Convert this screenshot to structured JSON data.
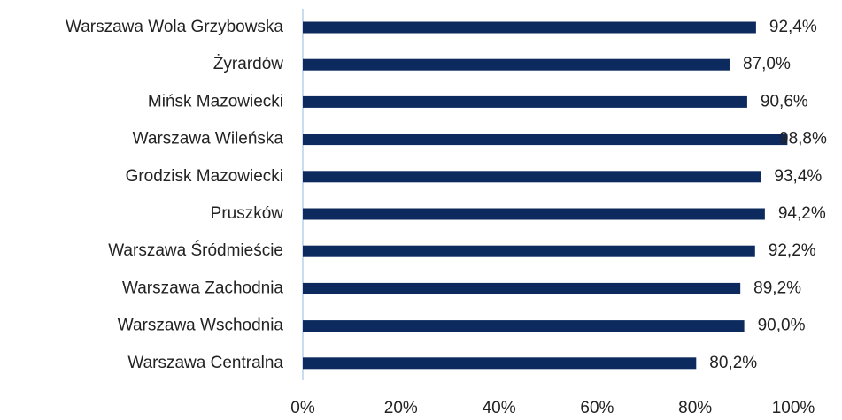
{
  "chart_data": {
    "type": "bar",
    "orientation": "horizontal",
    "categories": [
      "Warszawa Wola Grzybowska",
      "Żyrardów",
      "Mińsk Mazowiecki",
      "Warszawa Wileńska",
      "Grodzisk Mazowiecki",
      "Pruszków",
      "Warszawa Śródmieście",
      "Warszawa Zachodnia",
      "Warszawa Wschodnia",
      "Warszawa Centralna"
    ],
    "values": [
      92.4,
      87.0,
      90.6,
      98.8,
      93.4,
      94.2,
      92.2,
      89.2,
      90.0,
      80.2
    ],
    "value_labels": [
      "92,4%",
      "87,0%",
      "90,6%",
      "98,8%",
      "93,4%",
      "94,2%",
      "92,2%",
      "89,2%",
      "90,0%",
      "80,2%"
    ],
    "color": "#0c2a5e",
    "xlim": [
      0,
      100
    ],
    "xticks": [
      {
        "value": 0,
        "label": "0%"
      },
      {
        "value": 20,
        "label": "20%"
      },
      {
        "value": 40,
        "label": "40%"
      },
      {
        "value": 60,
        "label": "60%"
      },
      {
        "value": 80,
        "label": "80%"
      },
      {
        "value": 100,
        "label": "100%"
      }
    ],
    "grid": false
  }
}
